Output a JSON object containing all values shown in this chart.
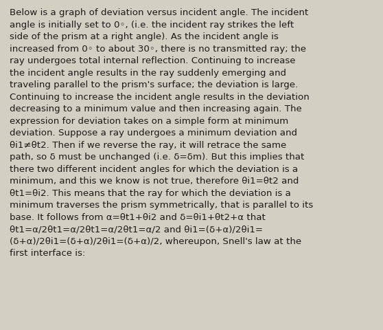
{
  "background_color": "#d4cfc3",
  "text_color": "#1a1a1a",
  "font_size": 9.6,
  "font_family": "DejaVu Sans",
  "lines": [
    "Below is a graph of deviation versus incident angle. The incident",
    "angle is initially set to 0◦, (i.e. the incident ray strikes the left",
    "side of the prism at a right angle). As the incident angle is",
    "increased from 0◦ to about 30◦, there is no transmitted ray; the",
    "ray undergoes total internal reflection. Continuing to increase",
    "the incident angle results in the ray suddenly emerging and",
    "traveling parallel to the prism's surface; the deviation is large.",
    "Continuing to increase the incident angle results in the deviation",
    "decreasing to a minimum value and then increasing again. The",
    "expression for deviation takes on a simple form at minimum",
    "deviation. Suppose a ray undergoes a minimum deviation and",
    "θi1≠θt2. Then if we reverse the ray, it will retrace the same",
    "path, so δ must be unchanged (i.e. δ=δm). But this implies that",
    "there two different incident angles for which the deviation is a",
    "minimum, and this we know is not true, therefore θi1=θt2 and",
    "θt1=θi2. This means that the ray for which the deviation is a",
    "minimum traverses the prism symmetrically, that is parallel to its",
    "base. It follows from α=θt1+θi2 and δ=θi1+θt2+α that",
    "θt1=α/2θt1=α/2θt1=α/2θt1=α/2 and θi1=(δ+α)/2θi1=",
    "(δ+α)/2θi1=(δ+α)/2θi1=(δ+α)/2, whereupon, Snell's law at the",
    "first interface is:"
  ]
}
